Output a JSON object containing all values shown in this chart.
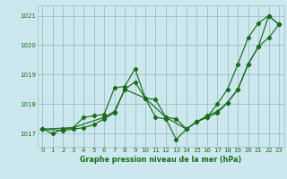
{
  "title": "Graphe pression niveau de la mer (hPa)",
  "xlim": [
    -0.5,
    23.5
  ],
  "ylim": [
    1016.55,
    1021.35
  ],
  "yticks": [
    1017,
    1018,
    1019,
    1020,
    1021
  ],
  "xticks": [
    0,
    1,
    2,
    3,
    4,
    5,
    6,
    7,
    8,
    9,
    10,
    11,
    12,
    13,
    14,
    15,
    16,
    17,
    18,
    19,
    20,
    21,
    22,
    23
  ],
  "background_color": "#cce8ee",
  "grid_color": "#9bbfc7",
  "line_color": "#1a6b1a",
  "lines": [
    {
      "x": [
        0,
        1,
        2,
        3,
        4,
        5,
        6,
        7,
        8,
        9,
        10,
        11,
        12,
        13,
        14,
        15,
        16,
        17,
        18,
        19,
        20,
        21,
        22,
        23
      ],
      "y": [
        1017.15,
        1017.0,
        1017.15,
        1017.2,
        1017.55,
        1017.6,
        1017.65,
        1018.55,
        1018.6,
        1019.2,
        1018.2,
        1017.55,
        1017.5,
        1016.8,
        1017.15,
        1017.4,
        1017.55,
        1018.0,
        1018.5,
        1019.35,
        1020.25,
        1020.75,
        1021.0,
        1020.7
      ]
    },
    {
      "x": [
        0,
        2,
        3,
        4,
        5,
        6,
        7,
        8,
        9,
        10,
        11,
        12,
        13,
        14,
        15,
        16,
        17,
        18,
        19,
        20,
        21,
        22,
        23
      ],
      "y": [
        1017.15,
        1017.1,
        1017.15,
        1017.2,
        1017.3,
        1017.5,
        1017.7,
        1018.5,
        1018.75,
        1018.2,
        1018.15,
        1017.55,
        1017.5,
        1017.15,
        1017.4,
        1017.55,
        1017.7,
        1018.05,
        1018.5,
        1019.35,
        1019.95,
        1021.0,
        1020.7
      ]
    },
    {
      "x": [
        0,
        3,
        6,
        7,
        8,
        10,
        12,
        14,
        15,
        16,
        17,
        18,
        19,
        20,
        21,
        22,
        23
      ],
      "y": [
        1017.15,
        1017.2,
        1017.55,
        1017.75,
        1018.5,
        1018.2,
        1017.55,
        1017.15,
        1017.4,
        1017.6,
        1017.75,
        1018.05,
        1018.5,
        1019.35,
        1019.95,
        1020.25,
        1020.7
      ]
    }
  ]
}
